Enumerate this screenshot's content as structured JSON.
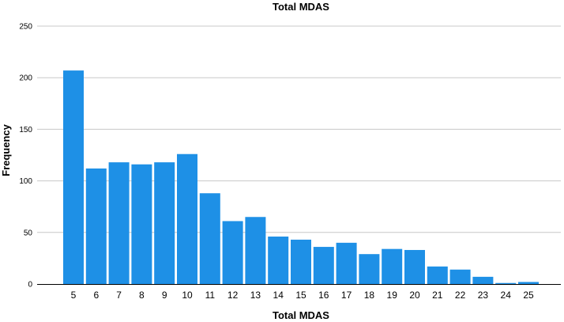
{
  "chart_data": {
    "type": "bar",
    "title": "Total MDAS",
    "xlabel": "Total MDAS",
    "ylabel": "Frequency",
    "categories": [
      "5",
      "6",
      "7",
      "8",
      "9",
      "10",
      "11",
      "12",
      "13",
      "14",
      "15",
      "16",
      "17",
      "18",
      "19",
      "20",
      "21",
      "22",
      "23",
      "24",
      "25"
    ],
    "values": [
      207,
      112,
      118,
      116,
      118,
      126,
      88,
      61,
      65,
      46,
      43,
      36,
      40,
      29,
      34,
      33,
      17,
      14,
      7,
      1,
      2
    ],
    "ylim": [
      0,
      260
    ],
    "yticks": [
      0,
      50,
      100,
      150,
      200,
      250
    ],
    "grid": true,
    "bar_color": "#1e90e6",
    "gridline_color": "#c8c8c8"
  }
}
